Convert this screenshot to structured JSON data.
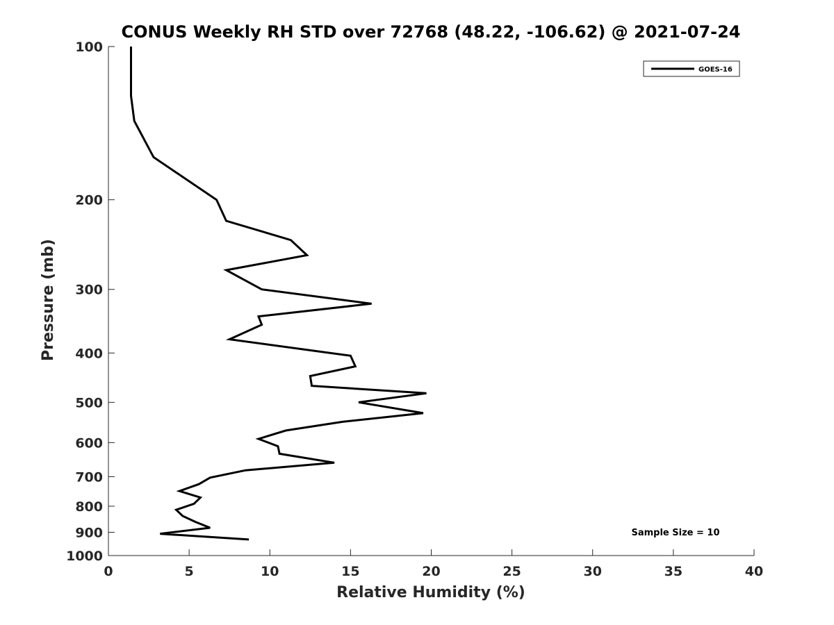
{
  "chart_data": {
    "type": "line",
    "title": "CONUS Weekly RH STD over 72768 (48.22, -106.62) @ 2021-07-24",
    "xlabel": "Relative Humidity (%)",
    "ylabel": "Pressure (mb)",
    "xlim": [
      0,
      40
    ],
    "ylim": [
      100,
      1000
    ],
    "yscale": "log",
    "y_reversed": true,
    "xticks": [
      0,
      5,
      10,
      15,
      20,
      25,
      30,
      35,
      40
    ],
    "yticks": [
      100,
      200,
      300,
      400,
      500,
      600,
      700,
      800,
      900,
      1000
    ],
    "grid": false,
    "legend_position": "top-right",
    "annotation": "Sample Size = 10",
    "series": [
      {
        "name": "GOES-16",
        "color": "#000000",
        "x": [
          1.4,
          1.4,
          1.6,
          2.8,
          6.7,
          7.3,
          11.3,
          12.3,
          7.3,
          9.5,
          16.3,
          9.3,
          9.5,
          7.5,
          15.0,
          15.3,
          12.5,
          12.6,
          19.7,
          15.5,
          19.5,
          14.5,
          11.0,
          9.3,
          10.5,
          10.6,
          14.0,
          8.5,
          6.3,
          5.6,
          4.4,
          5.7,
          5.3,
          4.2,
          4.6,
          5.4,
          6.3,
          3.2,
          8.7
        ],
        "y": [
          100,
          125,
          140,
          165,
          200,
          220,
          240,
          257,
          275,
          300,
          320,
          339,
          352,
          376,
          405,
          425,
          444,
          464,
          480,
          500,
          525,
          546,
          568,
          590,
          610,
          631,
          657,
          680,
          703,
          724,
          747,
          769,
          791,
          813,
          836,
          859,
          882,
          906,
          930
        ]
      }
    ]
  }
}
